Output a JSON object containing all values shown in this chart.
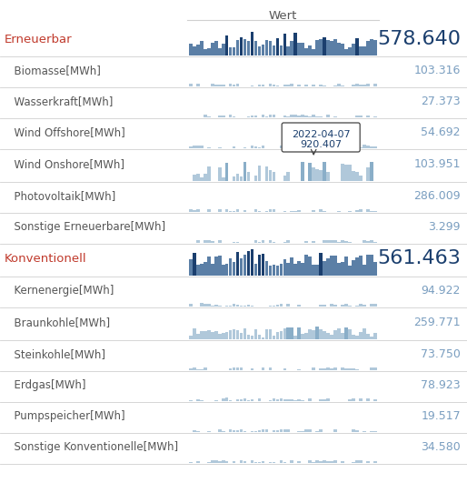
{
  "title": "Wert",
  "rows": [
    {
      "label": "Erneuerbar",
      "value": "578.640",
      "level": 0,
      "label_color": "#c0392b",
      "value_color": "#1b3f6e",
      "value_size": 16,
      "bar_style": "tall"
    },
    {
      "label": "  Biomasse[MWh]",
      "value": "103.316",
      "level": 1,
      "label_color": "#555555",
      "value_color": "#7a9ec0",
      "value_size": 9,
      "bar_style": "tiny_flat"
    },
    {
      "label": "  Wasserkraft[MWh]",
      "value": "27.373",
      "level": 1,
      "label_color": "#555555",
      "value_color": "#7a9ec0",
      "value_size": 9,
      "bar_style": "tiny_flat"
    },
    {
      "label": "  Wind Offshore[MWh]",
      "value": "54.692",
      "level": 1,
      "label_color": "#555555",
      "value_color": "#7a9ec0",
      "value_size": 9,
      "bar_style": "tiny_flat"
    },
    {
      "label": "  Wind Onshore[MWh]",
      "value": "103.951",
      "level": 1,
      "label_color": "#555555",
      "value_color": "#7a9ec0",
      "value_size": 9,
      "bar_style": "medium"
    },
    {
      "label": "  Photovoltaik[MWh]",
      "value": "286.009",
      "level": 1,
      "label_color": "#555555",
      "value_color": "#7a9ec0",
      "value_size": 9,
      "bar_style": "tiny_flat"
    },
    {
      "label": "  Sonstige Erneuerbare[MWh]",
      "value": "3.299",
      "level": 1,
      "label_color": "#555555",
      "value_color": "#7a9ec0",
      "value_size": 9,
      "bar_style": "tiny_flat"
    },
    {
      "label": "Konventionell",
      "value": "561.463",
      "level": 0,
      "label_color": "#c0392b",
      "value_color": "#1b3f6e",
      "value_size": 16,
      "bar_style": "tall2"
    },
    {
      "label": "  Kernenergie[MWh]",
      "value": "94.922",
      "level": 1,
      "label_color": "#555555",
      "value_color": "#7a9ec0",
      "value_size": 9,
      "bar_style": "tiny_flat"
    },
    {
      "label": "  Braunkohle[MWh]",
      "value": "259.771",
      "level": 1,
      "label_color": "#555555",
      "value_color": "#7a9ec0",
      "value_size": 9,
      "bar_style": "medium2"
    },
    {
      "label": "  Steinkohle[MWh]",
      "value": "73.750",
      "level": 1,
      "label_color": "#555555",
      "value_color": "#7a9ec0",
      "value_size": 9,
      "bar_style": "tiny_flat"
    },
    {
      "label": "  Erdgas[MWh]",
      "value": "78.923",
      "level": 1,
      "label_color": "#555555",
      "value_color": "#7a9ec0",
      "value_size": 9,
      "bar_style": "tiny_flat"
    },
    {
      "label": "  Pumpspeicher[MWh]",
      "value": "19.517",
      "level": 1,
      "label_color": "#555555",
      "value_color": "#7a9ec0",
      "value_size": 9,
      "bar_style": "tiny_flat"
    },
    {
      "label": "  Sonstige Konventionelle[MWh]",
      "value": "34.580",
      "level": 1,
      "label_color": "#555555",
      "value_color": "#7a9ec0",
      "value_size": 9,
      "bar_style": "tiny_flat"
    }
  ],
  "tooltip_text_line1": "2022-04-07",
  "tooltip_text_line2": "920.407",
  "tooltip_row_idx": 4,
  "bar_color_dark": "#1b3f6e",
  "bar_color_mid": "#5b7fa6",
  "bar_color_light": "#8aaec8",
  "bar_color_lighter": "#b0c8da",
  "divider_color": "#d0d0d0",
  "bg_color": "#ffffff",
  "header_color": "#555555",
  "n_bars": 52
}
